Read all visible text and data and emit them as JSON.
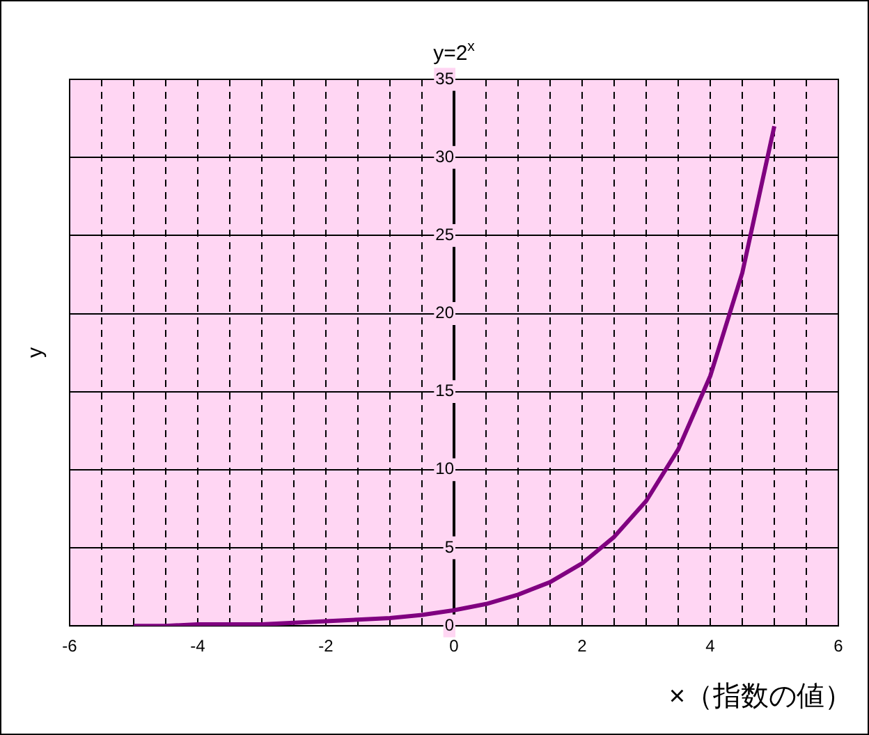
{
  "chart_data": {
    "type": "line",
    "title": "y=2$^{x}$",
    "xlabel": "×（指数の値）",
    "ylabel": "y",
    "x": [
      -5,
      -4.5,
      -4,
      -3.5,
      -3,
      -2.5,
      -2,
      -1.5,
      -1,
      -0.5,
      0,
      0.5,
      1,
      1.5,
      2,
      2.5,
      3,
      3.5,
      4,
      4.5,
      5
    ],
    "series": [
      {
        "color": "#800080",
        "values": [
          0,
          0,
          0.1,
          0.1,
          0.1,
          0.2,
          0.3,
          0.4,
          0.5,
          0.7,
          1,
          1.4,
          2,
          2.8,
          4,
          5.7,
          8,
          11.3,
          16,
          22.6,
          32
        ]
      }
    ],
    "xlim": [
      -6,
      6
    ],
    "ylim": [
      0,
      35
    ],
    "xticks": [
      -6,
      {
        "value": -5.5,
        "label": null
      },
      {
        "value": -5,
        "label": null
      },
      {
        "value": -4.5,
        "label": null
      },
      -4,
      {
        "value": -3.5,
        "label": null
      },
      {
        "value": -3,
        "label": null
      },
      {
        "value": -2.5,
        "label": null
      },
      -2,
      {
        "value": -1.5,
        "label": null
      },
      {
        "value": -1,
        "label": null
      },
      {
        "value": -0.5,
        "label": null
      },
      0,
      {
        "value": 0.5,
        "label": null
      },
      {
        "value": 1,
        "label": null
      },
      {
        "value": 1.5,
        "label": null
      },
      2,
      {
        "value": 2.5,
        "label": null
      },
      {
        "value": 3,
        "label": null
      },
      {
        "value": 3.5,
        "label": null
      },
      4,
      {
        "value": 4.5,
        "label": null
      },
      {
        "value": 5,
        "label": null
      },
      {
        "value": 5.5,
        "label": null
      },
      6
    ],
    "yticks": [
      0,
      5,
      10,
      15,
      20,
      25,
      30,
      35
    ],
    "grid": true,
    "legend": false,
    "marker": "none",
    "line_style": "solid"
  }
}
